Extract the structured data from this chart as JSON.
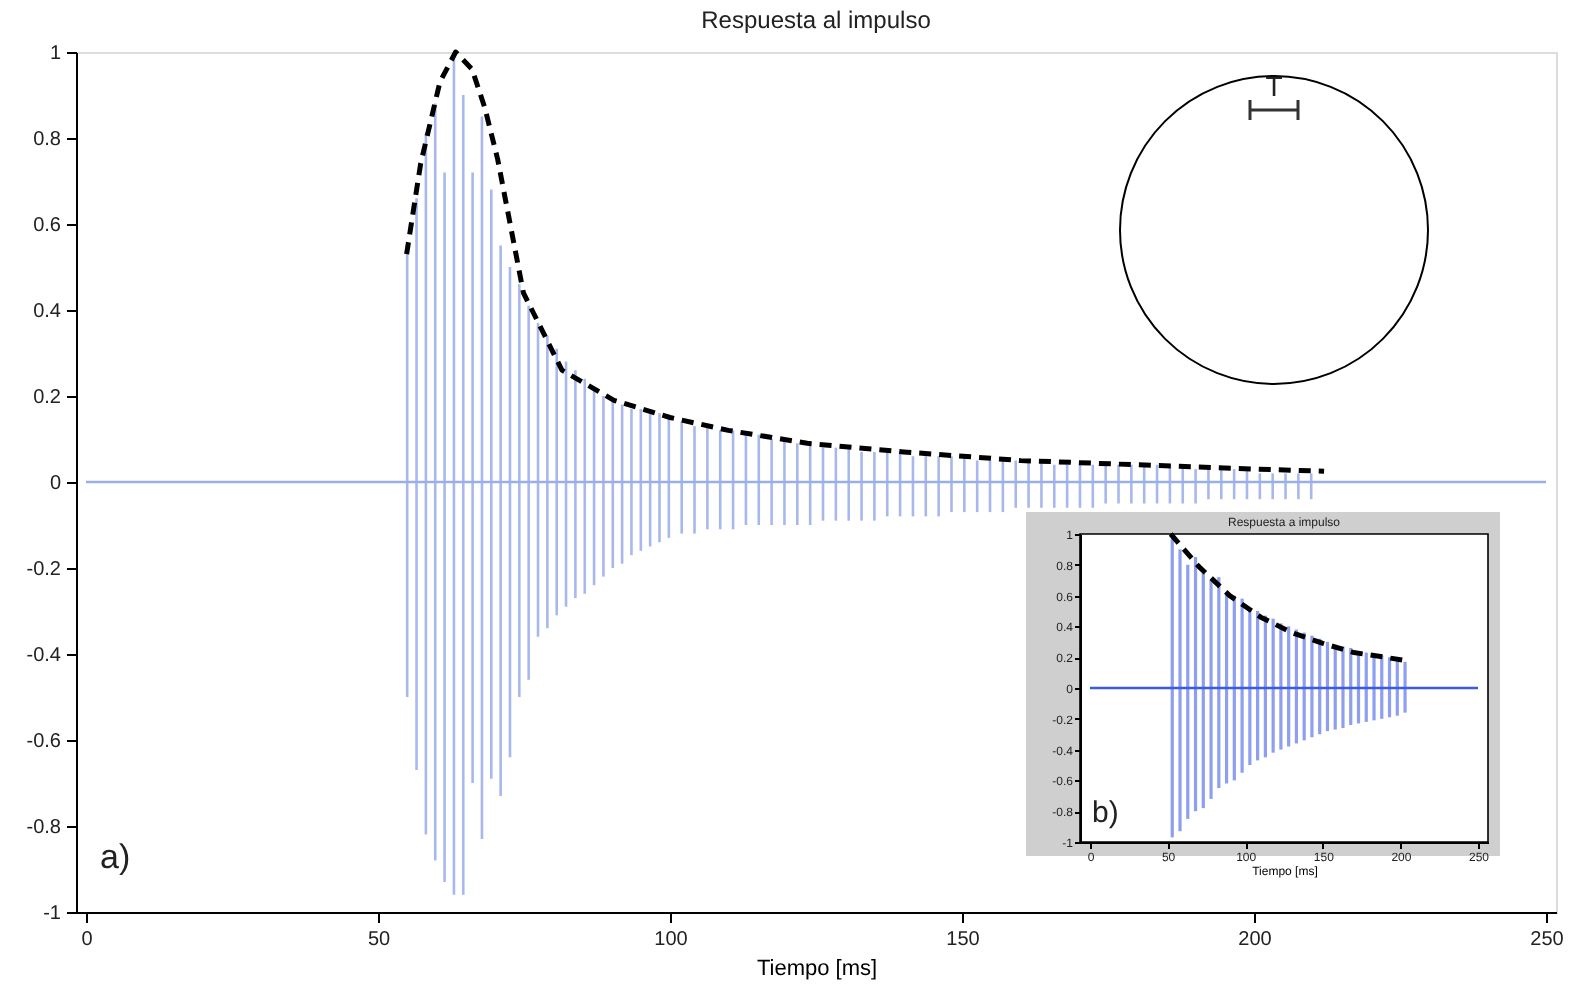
{
  "chart_data": [
    {
      "type": "bar",
      "title": "Respuesta al impulso",
      "xlabel": "Tiempo [ms]",
      "xlim": [
        0,
        250
      ],
      "xticks": [
        0,
        50,
        100,
        150,
        200,
        250
      ],
      "ylim": [
        -1,
        1
      ],
      "yticks": [
        -1,
        -0.8,
        -0.6,
        -0.4,
        -0.2,
        0,
        0.2,
        0.4,
        0.6,
        0.8,
        1
      ],
      "series": [
        {
          "color": "#a8b8ec",
          "x": [
            55,
            56.6,
            58.2,
            59.8,
            61.4,
            63,
            64.6,
            66.2,
            67.8,
            69.4,
            71,
            72.6,
            74.2,
            75.8,
            77.4,
            79,
            80.6,
            82.2,
            83.8,
            85.4,
            87,
            88.6,
            90.2,
            91.8,
            93.4,
            95,
            96.6,
            98.2,
            99.8,
            102,
            104.2,
            106.4,
            108.6,
            110.8,
            113,
            115.2,
            117.4,
            119.6,
            121.8,
            124,
            126.2,
            128.4,
            130.6,
            132.8,
            135,
            137.2,
            139.4,
            141.6,
            143.8,
            146,
            148.2,
            150.4,
            152.6,
            154.8,
            157,
            159.2,
            161.4,
            163.6,
            165.8,
            168,
            170.2,
            172.4,
            174.6,
            176.8,
            179,
            181.2,
            183.4,
            185.6,
            187.8,
            190,
            192.2,
            194.4,
            196.6,
            198.8,
            201,
            203.2,
            205.4,
            207.6,
            209.8
          ],
          "values": [
            0.53,
            0.66,
            0.81,
            0.88,
            0.72,
            1.0,
            0.9,
            0.72,
            0.85,
            0.68,
            0.55,
            0.5,
            0.46,
            0.41,
            0.37,
            0.34,
            0.31,
            0.28,
            0.26,
            0.24,
            0.22,
            0.2,
            0.19,
            0.18,
            0.17,
            0.17,
            0.16,
            0.16,
            0.15,
            0.14,
            0.13,
            0.13,
            0.12,
            0.12,
            0.11,
            0.11,
            0.1,
            0.1,
            0.09,
            0.09,
            0.08,
            0.08,
            0.08,
            0.07,
            0.07,
            0.07,
            0.07,
            0.06,
            0.06,
            0.06,
            0.06,
            0.06,
            0.05,
            0.05,
            0.05,
            0.05,
            0.05,
            0.05,
            0.04,
            0.04,
            0.04,
            0.04,
            0.04,
            0.04,
            0.04,
            0.04,
            0.04,
            0.04,
            0.04,
            0.03,
            0.03,
            0.03,
            0.03,
            0.03,
            0.02,
            0.02,
            0.02,
            0.02,
            0.02
          ]
        },
        {
          "color": "#a8b8ec",
          "x": [
            55,
            56.6,
            58.2,
            59.8,
            61.4,
            63,
            64.6,
            66.2,
            67.8,
            69.4,
            71,
            72.6,
            74.2,
            75.8,
            77.4,
            79,
            80.6,
            82.2,
            83.8,
            85.4,
            87,
            88.6,
            90.2,
            91.8,
            93.4,
            95,
            96.6,
            98.2,
            99.8,
            102,
            104.2,
            106.4,
            108.6,
            110.8,
            113,
            115.2,
            117.4,
            119.6,
            121.8,
            124,
            126.2,
            128.4,
            130.6,
            132.8,
            135,
            137.2,
            139.4,
            141.6,
            143.8,
            146,
            148.2,
            150.4,
            152.6,
            154.8,
            157,
            159.2,
            161.4,
            163.6,
            165.8,
            168,
            170.2,
            172.4,
            174.6,
            176.8,
            179,
            181.2,
            183.4,
            185.6,
            187.8,
            190,
            192.2,
            194.4,
            196.6,
            198.8,
            201,
            203.2,
            205.4,
            207.6,
            209.8
          ],
          "values": [
            -0.5,
            -0.67,
            -0.82,
            -0.88,
            -0.93,
            -0.96,
            -0.96,
            -0.7,
            -0.83,
            -0.69,
            -0.73,
            -0.64,
            -0.5,
            -0.46,
            -0.36,
            -0.34,
            -0.31,
            -0.29,
            -0.27,
            -0.26,
            -0.24,
            -0.22,
            -0.2,
            -0.19,
            -0.17,
            -0.16,
            -0.15,
            -0.14,
            -0.13,
            -0.12,
            -0.12,
            -0.11,
            -0.11,
            -0.11,
            -0.1,
            -0.1,
            -0.1,
            -0.1,
            -0.1,
            -0.1,
            -0.09,
            -0.09,
            -0.09,
            -0.09,
            -0.09,
            -0.08,
            -0.08,
            -0.08,
            -0.08,
            -0.08,
            -0.07,
            -0.07,
            -0.07,
            -0.07,
            -0.07,
            -0.06,
            -0.06,
            -0.06,
            -0.06,
            -0.06,
            -0.06,
            -0.06,
            -0.05,
            -0.05,
            -0.05,
            -0.05,
            -0.05,
            -0.05,
            -0.05,
            -0.05,
            -0.04,
            -0.04,
            -0.04,
            -0.04,
            -0.04,
            -0.04,
            -0.04,
            -0.04,
            -0.04
          ]
        },
        {
          "type": "line",
          "color": "#000000",
          "line_style": "dashed",
          "x": [
            54.9,
            57.3,
            60.6,
            63.3,
            66.1,
            68.3,
            70.5,
            74.9,
            81.5,
            90.4,
            100,
            110,
            123.5,
            140,
            160,
            180,
            200,
            212
          ],
          "values": [
            0.53,
            0.74,
            0.93,
            1.0,
            0.96,
            0.87,
            0.75,
            0.44,
            0.26,
            0.19,
            0.15,
            0.12,
            0.09,
            0.07,
            0.05,
            0.04,
            0.03,
            0.025
          ]
        }
      ],
      "ref_lines": [
        {
          "axis": "y",
          "value": 0,
          "color": "#9aaee8"
        }
      ],
      "annotations": [
        "a)",
        "T"
      ]
    },
    {
      "type": "bar",
      "title": "Respuesta a impulso",
      "xlabel": "Tiempo [ms]",
      "xlim": [
        0,
        250
      ],
      "xticks": [
        0,
        50,
        100,
        150,
        200,
        250
      ],
      "ylim": [
        -1,
        1
      ],
      "yticks": [
        -1,
        -0.8,
        -0.6,
        -0.4,
        -0.2,
        0,
        0.2,
        0.4,
        0.6,
        0.8,
        1
      ],
      "series": [
        {
          "color": "#8e9ff0",
          "x": [
            53,
            58,
            63,
            68,
            73,
            78,
            83,
            88,
            93,
            98,
            103,
            108,
            113,
            118,
            123,
            128,
            133,
            138,
            143,
            148,
            153,
            158,
            163,
            168,
            173,
            178,
            183,
            188,
            193,
            198,
            203
          ],
          "values": [
            0.97,
            0.9,
            0.8,
            0.85,
            0.75,
            0.7,
            0.72,
            0.62,
            0.6,
            0.58,
            0.52,
            0.5,
            0.47,
            0.45,
            0.42,
            0.4,
            0.38,
            0.36,
            0.34,
            0.32,
            0.3,
            0.28,
            0.27,
            0.26,
            0.24,
            0.23,
            0.22,
            0.21,
            0.2,
            0.19,
            0.17
          ]
        },
        {
          "color": "#8e9ff0",
          "x": [
            53,
            58,
            63,
            68,
            73,
            78,
            83,
            88,
            93,
            98,
            103,
            108,
            113,
            118,
            123,
            128,
            133,
            138,
            143,
            148,
            153,
            158,
            163,
            168,
            173,
            178,
            183,
            188,
            193,
            198,
            203
          ],
          "values": [
            -0.97,
            -0.93,
            -0.85,
            -0.8,
            -0.78,
            -0.72,
            -0.65,
            -0.62,
            -0.6,
            -0.55,
            -0.5,
            -0.47,
            -0.45,
            -0.42,
            -0.4,
            -0.38,
            -0.36,
            -0.34,
            -0.32,
            -0.3,
            -0.28,
            -0.27,
            -0.26,
            -0.24,
            -0.23,
            -0.22,
            -0.21,
            -0.2,
            -0.19,
            -0.18,
            -0.16
          ]
        },
        {
          "type": "line",
          "color": "#000000",
          "line_style": "dashed",
          "x": [
            52,
            70,
            90,
            110,
            130,
            150,
            170,
            190,
            202
          ],
          "values": [
            1.0,
            0.79,
            0.6,
            0.46,
            0.36,
            0.29,
            0.23,
            0.2,
            0.18
          ]
        }
      ],
      "ref_lines": [
        {
          "axis": "y",
          "value": 0,
          "color": "#3a5bdc"
        }
      ],
      "annotations": [
        "b)"
      ]
    }
  ]
}
